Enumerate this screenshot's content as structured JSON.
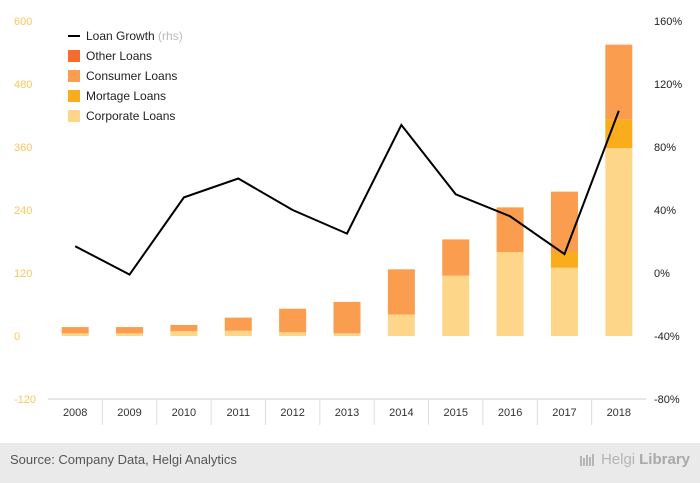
{
  "chart_data": {
    "type": "bar",
    "stacked": true,
    "categories": [
      "2008",
      "2009",
      "2010",
      "2011",
      "2012",
      "2013",
      "2014",
      "2015",
      "2016",
      "2017",
      "2018"
    ],
    "series": [
      {
        "name": "Corporate Loans",
        "type": "bar",
        "axis": "left",
        "color": "#fdd68a",
        "values": [
          5,
          5,
          9,
          10,
          7,
          5,
          41,
          115,
          160,
          130,
          358
        ]
      },
      {
        "name": "Mortage Loans",
        "type": "bar",
        "axis": "left",
        "color": "#f9ad1d",
        "values": [
          0,
          0,
          0,
          0,
          0,
          0,
          0,
          0,
          0,
          30,
          55
        ]
      },
      {
        "name": "Consumer Loans",
        "type": "bar",
        "axis": "left",
        "color": "#fa9d4e",
        "values": [
          12,
          12,
          12,
          25,
          45,
          60,
          86,
          69,
          85,
          115,
          142
        ]
      },
      {
        "name": "Other Loans",
        "type": "bar",
        "axis": "left",
        "color": "#f76b2b",
        "values": [
          0,
          0,
          0,
          0,
          0,
          0,
          0,
          0,
          0,
          0,
          0
        ]
      },
      {
        "name": "Loan Growth",
        "type": "line",
        "axis": "right",
        "color": "#000000",
        "values": [
          17,
          -1,
          48,
          60,
          40,
          25,
          94,
          50,
          36,
          12,
          103
        ]
      }
    ],
    "legend": [
      {
        "label": "Loan Growth",
        "suffix": "(rhs)",
        "color": "#000000",
        "kind": "line"
      },
      {
        "label": "Other Loans",
        "color": "#f76b2b",
        "kind": "box"
      },
      {
        "label": "Consumer Loans",
        "color": "#fa9d4e",
        "kind": "box"
      },
      {
        "label": "Mortage Loans",
        "color": "#f9ad1d",
        "kind": "box"
      },
      {
        "label": "Corporate Loans",
        "color": "#fdd68a",
        "kind": "box"
      }
    ],
    "legend_position": "top-left",
    "y_left": {
      "min": -120,
      "max": 600,
      "ticks": [
        -120,
        0,
        120,
        240,
        360,
        480,
        600
      ],
      "tick_color": "#fbc75c"
    },
    "y_right": {
      "min": -80,
      "max": 160,
      "ticks": [
        "-80%",
        "-40%",
        "0%",
        "40%",
        "80%",
        "120%",
        "160%"
      ]
    },
    "grid": "vertical separators",
    "title": "",
    "xlabel": "",
    "ylabel": ""
  },
  "footer": {
    "source": "Source: Company Data, Helgi Analytics",
    "brand_light": "Helgi",
    "brand_bold": "Library"
  }
}
